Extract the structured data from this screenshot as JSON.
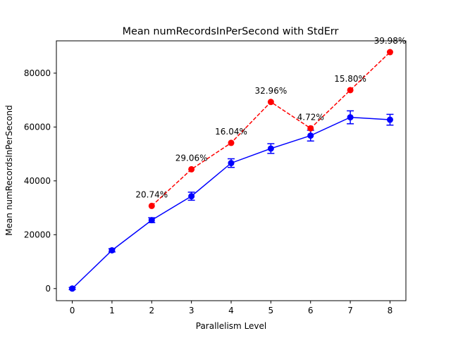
{
  "chart_data": {
    "type": "line",
    "title": "Mean numRecordsInPerSecond with StdErr",
    "xlabel": "Parallelism Level",
    "ylabel": "Mean numRecordsInPerSecond",
    "xlim": [
      -0.4,
      8.4
    ],
    "ylim": [
      -4500,
      92000
    ],
    "xticks": [
      0,
      1,
      2,
      3,
      4,
      5,
      6,
      7,
      8
    ],
    "yticks": [
      0,
      20000,
      40000,
      60000,
      80000
    ],
    "grid": false,
    "series": [
      {
        "color": "#0000ff",
        "style": "solid",
        "marker": "circle",
        "x": [
          0,
          1,
          2,
          3,
          4,
          5,
          6,
          7,
          8
        ],
        "y": [
          0,
          14200,
          25400,
          34300,
          46600,
          52000,
          56800,
          63600,
          62700
        ],
        "yerr": [
          400,
          600,
          900,
          1500,
          1600,
          1800,
          2000,
          2400,
          2000
        ]
      },
      {
        "color": "#ff0000",
        "style": "dashed",
        "marker": "circle",
        "x": [
          2,
          3,
          4,
          5,
          6,
          7,
          8
        ],
        "y": [
          30700,
          44300,
          54100,
          69300,
          59500,
          73700,
          87800
        ],
        "labels": [
          "20.74%",
          "29.06%",
          "16.04%",
          "32.96%",
          "4.72%",
          "15.80%",
          "39.98%"
        ]
      }
    ]
  }
}
